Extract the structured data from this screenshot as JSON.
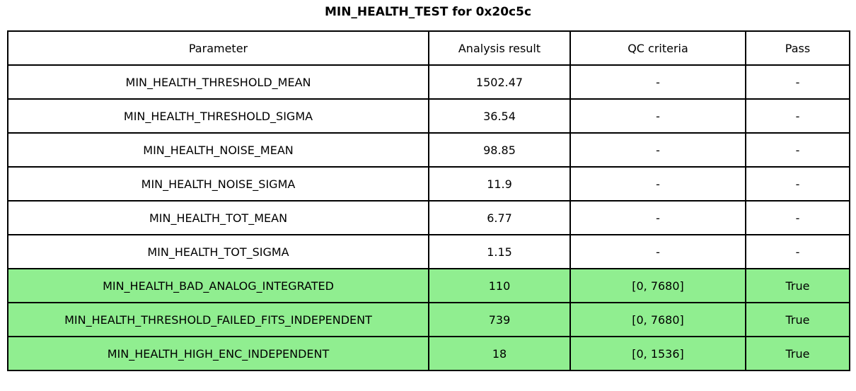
{
  "title": "MIN_HEALTH_TEST for 0x20c5c",
  "colors": {
    "highlight_green": "#90ee90",
    "border": "#000000",
    "background": "#ffffff",
    "text": "#000000"
  },
  "chart_data": {
    "type": "table",
    "title": "MIN_HEALTH_TEST for 0x20c5c",
    "columns": [
      "Parameter",
      "Analysis result",
      "QC criteria",
      "Pass"
    ],
    "rows": [
      {
        "parameter": "MIN_HEALTH_THRESHOLD_MEAN",
        "analysis_result": "1502.47",
        "qc_criteria": "-",
        "pass": "-",
        "highlighted": false
      },
      {
        "parameter": "MIN_HEALTH_THRESHOLD_SIGMA",
        "analysis_result": "36.54",
        "qc_criteria": "-",
        "pass": "-",
        "highlighted": false
      },
      {
        "parameter": "MIN_HEALTH_NOISE_MEAN",
        "analysis_result": "98.85",
        "qc_criteria": "-",
        "pass": "-",
        "highlighted": false
      },
      {
        "parameter": "MIN_HEALTH_NOISE_SIGMA",
        "analysis_result": "11.9",
        "qc_criteria": "-",
        "pass": "-",
        "highlighted": false
      },
      {
        "parameter": "MIN_HEALTH_TOT_MEAN",
        "analysis_result": "6.77",
        "qc_criteria": "-",
        "pass": "-",
        "highlighted": false
      },
      {
        "parameter": "MIN_HEALTH_TOT_SIGMA",
        "analysis_result": "1.15",
        "qc_criteria": "-",
        "pass": "-",
        "highlighted": false
      },
      {
        "parameter": "MIN_HEALTH_BAD_ANALOG_INTEGRATED",
        "analysis_result": "110",
        "qc_criteria": "[0, 7680]",
        "pass": "True",
        "highlighted": true
      },
      {
        "parameter": "MIN_HEALTH_THRESHOLD_FAILED_FITS_INDEPENDENT",
        "analysis_result": "739",
        "qc_criteria": "[0, 7680]",
        "pass": "True",
        "highlighted": true
      },
      {
        "parameter": "MIN_HEALTH_HIGH_ENC_INDEPENDENT",
        "analysis_result": "18",
        "qc_criteria": "[0, 1536]",
        "pass": "True",
        "highlighted": true
      }
    ]
  }
}
